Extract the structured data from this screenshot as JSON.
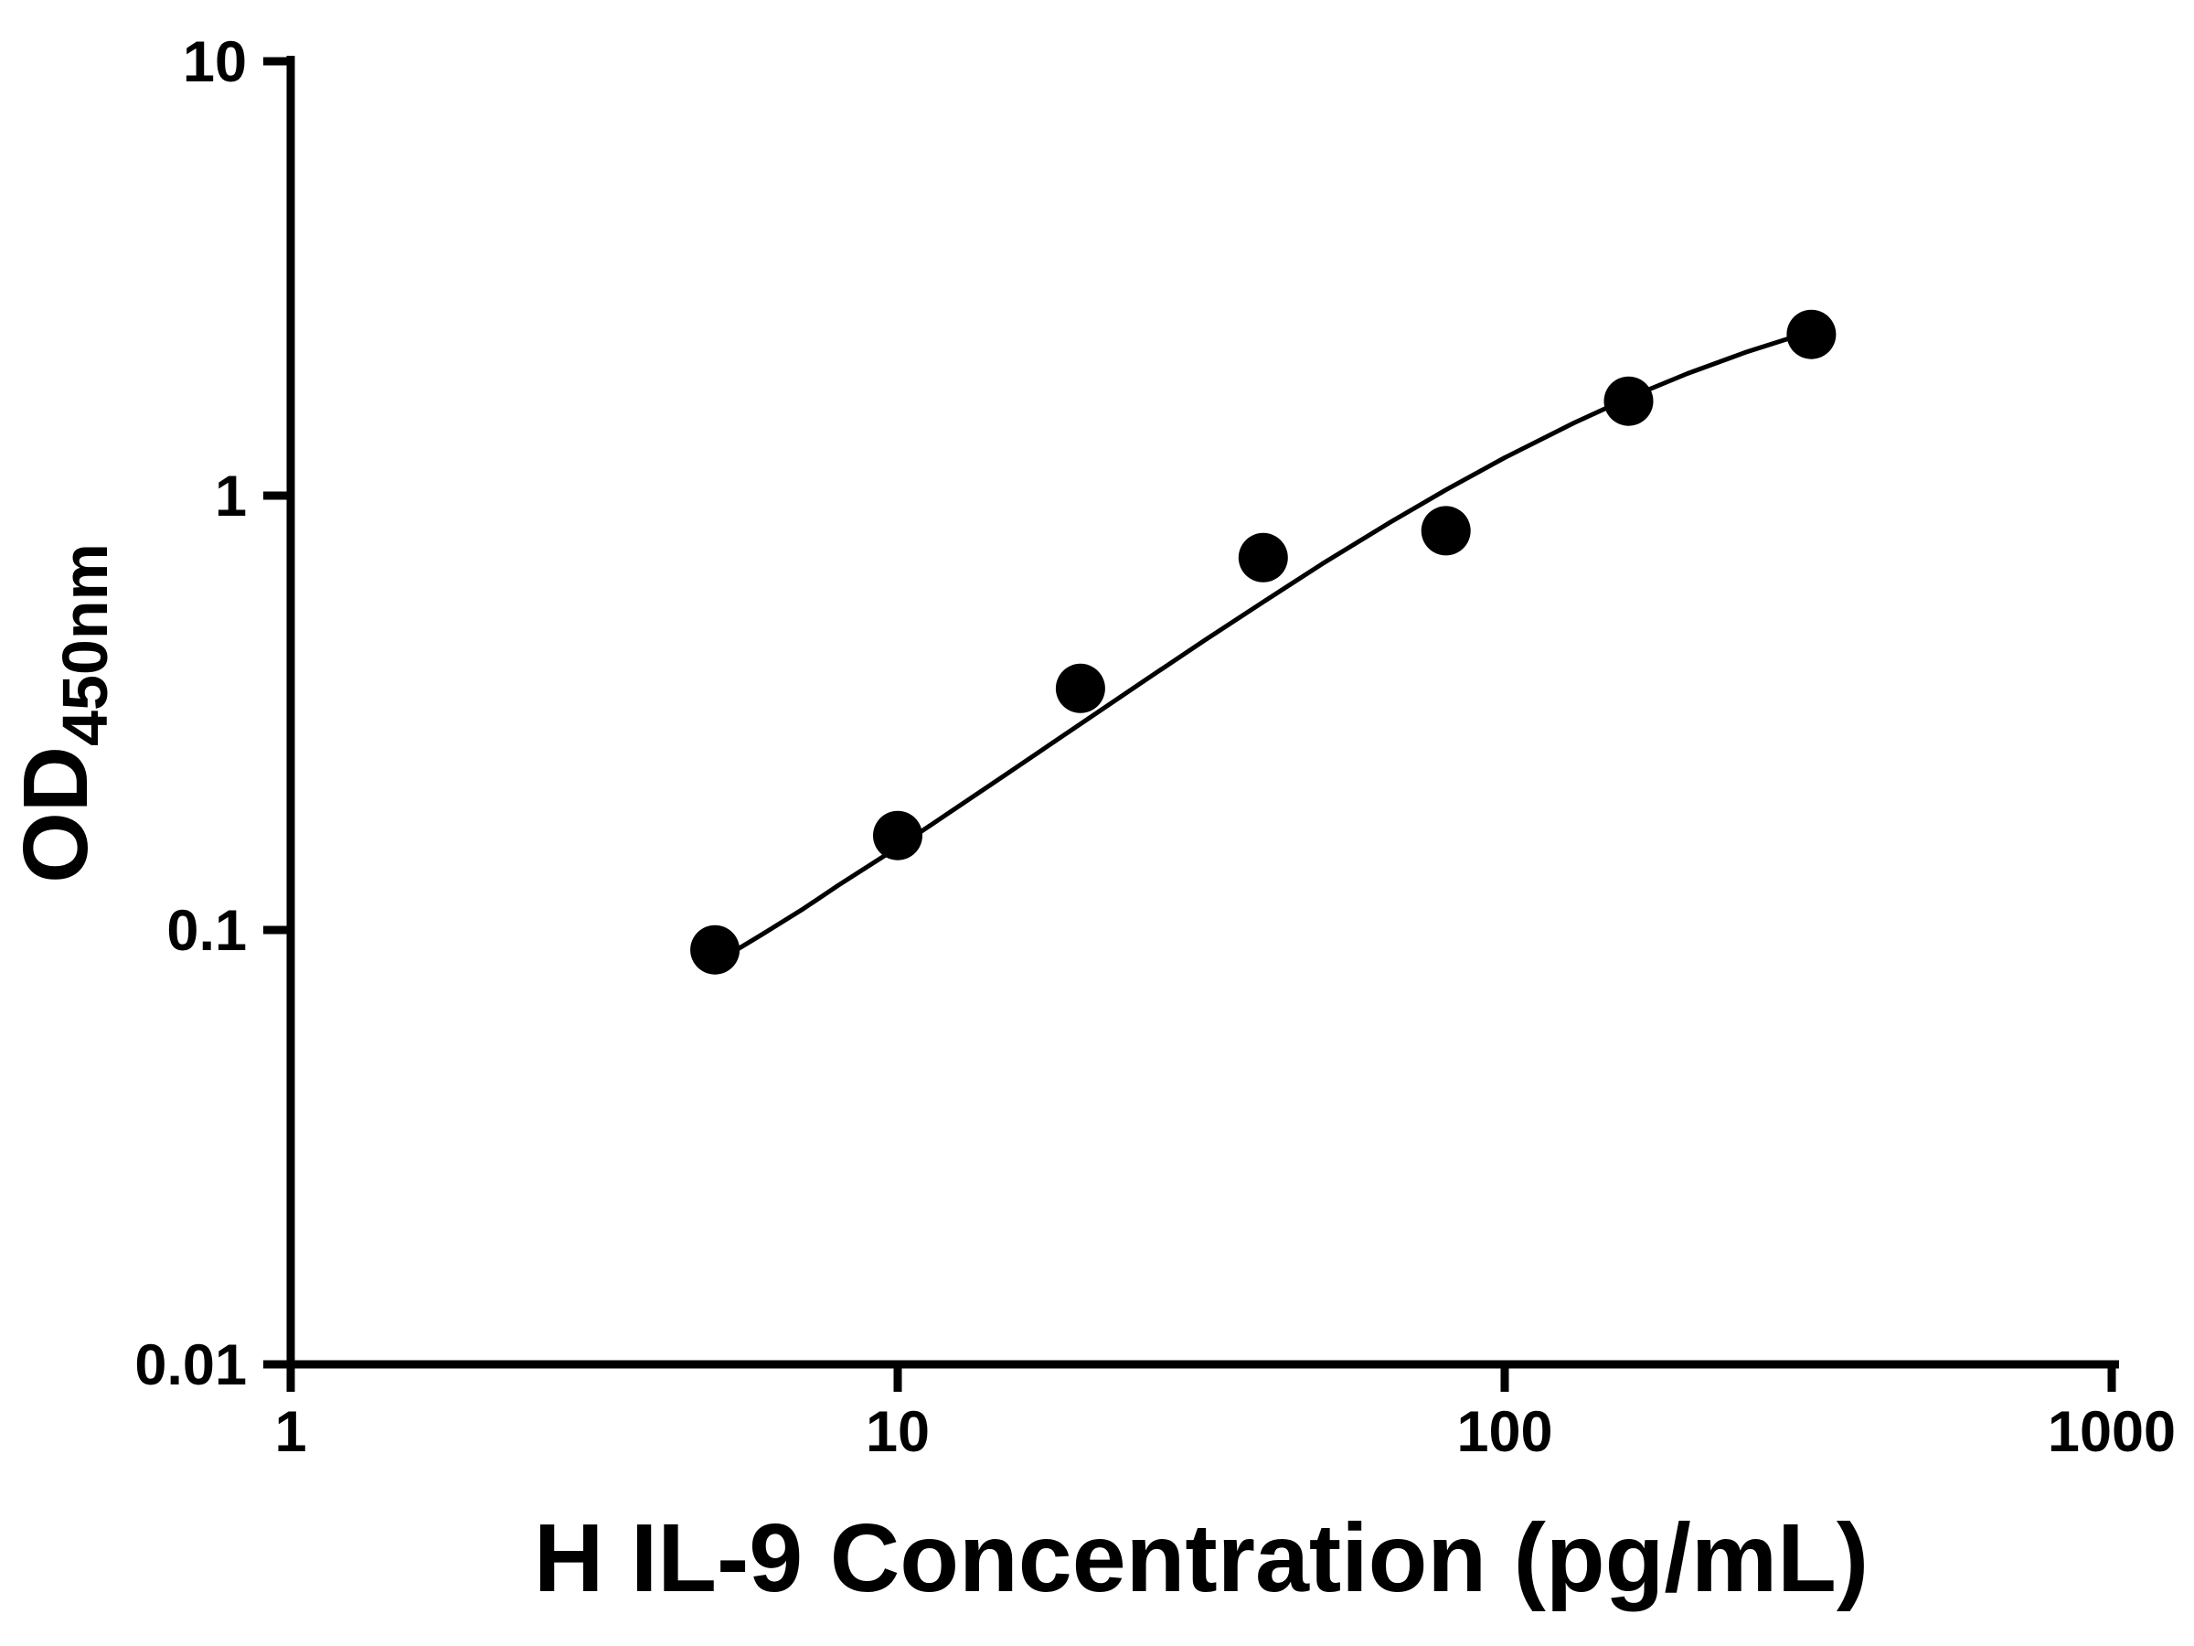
{
  "chart_data": {
    "type": "scatter",
    "title": "",
    "xlabel": "H IL-9 Concentration (pg/mL)",
    "ylabel_main": "OD",
    "ylabel_sub": "450nm",
    "x_scale": "log10",
    "y_scale": "log10",
    "xlim": [
      1,
      1000
    ],
    "ylim": [
      0.01,
      10
    ],
    "x_ticks": [
      1,
      10,
      100,
      1000
    ],
    "x_tick_labels": [
      "1",
      "10",
      "100",
      "1000"
    ],
    "y_ticks": [
      0.01,
      0.1,
      1,
      10
    ],
    "y_tick_labels": [
      "0.01",
      "0.1",
      "1",
      "10"
    ],
    "grid": false,
    "legend": "none",
    "marker_color": "#000000",
    "curve_color": "#000000",
    "axis_color": "#000000",
    "points": {
      "x": [
        5,
        10,
        20,
        40,
        80,
        160,
        320
      ],
      "y": [
        0.09,
        0.165,
        0.36,
        0.72,
        0.83,
        1.65,
        2.35
      ]
    },
    "fit_curve": {
      "x": [
        5,
        6,
        7,
        8,
        10,
        12,
        15,
        20,
        25,
        32,
        40,
        50,
        65,
        80,
        100,
        130,
        160,
        200,
        250,
        320
      ],
      "y": [
        0.084,
        0.098,
        0.112,
        0.127,
        0.155,
        0.184,
        0.227,
        0.298,
        0.368,
        0.464,
        0.569,
        0.696,
        0.871,
        1.031,
        1.223,
        1.47,
        1.679,
        1.91,
        2.141,
        2.388
      ]
    }
  }
}
